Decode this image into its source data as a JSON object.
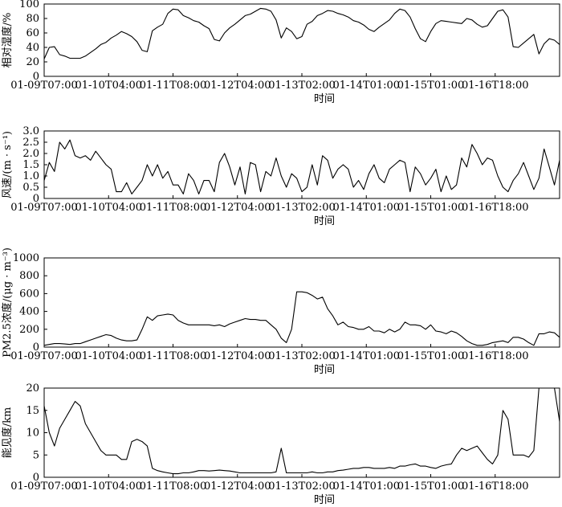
{
  "chart_data": [
    {
      "type": "line",
      "ylabel": "相对湿度/%",
      "xlabel": "时间",
      "ylim": [
        0,
        100
      ],
      "yticks": [
        0,
        20,
        40,
        60,
        80,
        100
      ],
      "xlim": [
        0,
        100
      ],
      "xticks": [
        0,
        12.5,
        25,
        37.5,
        50,
        62.5,
        75,
        87.5,
        100
      ],
      "xtick_labels": [
        "01-09T07:00",
        "01-10T04:00",
        "01-11T08:00",
        "01-12T04:00",
        "01-13T02:00",
        "01-14T01:00",
        "01-15T01:00",
        "01-16T18:00",
        ""
      ],
      "x": [
        0,
        1,
        2,
        3,
        4,
        5,
        6,
        7,
        8,
        9,
        10,
        11,
        12,
        13,
        14,
        15,
        16,
        17,
        18,
        19,
        20,
        21,
        22,
        23,
        24,
        25,
        26,
        27,
        28,
        29,
        30,
        31,
        32,
        33,
        34,
        35,
        36,
        37,
        38,
        39,
        40,
        41,
        42,
        43,
        44,
        45,
        46,
        47,
        48,
        49,
        50,
        51,
        52,
        53,
        54,
        55,
        56,
        57,
        58,
        59,
        60,
        61,
        62,
        63,
        64,
        65,
        66,
        67,
        68,
        69,
        70,
        71,
        72,
        73,
        74,
        75,
        76,
        77,
        78,
        79,
        80,
        81,
        82,
        83,
        84,
        85,
        86,
        87,
        88,
        89,
        90,
        91,
        92,
        93,
        94,
        95,
        96,
        97,
        98,
        99,
        100
      ],
      "y": [
        24,
        40,
        41,
        30,
        28,
        25,
        25,
        25,
        28,
        33,
        38,
        44,
        47,
        53,
        57,
        62,
        59,
        55,
        48,
        36,
        34,
        63,
        68,
        72,
        87,
        93,
        92,
        84,
        81,
        77,
        75,
        70,
        66,
        51,
        49,
        60,
        67,
        72,
        78,
        84,
        86,
        90,
        94,
        93,
        90,
        78,
        53,
        67,
        62,
        52,
        55,
        72,
        76,
        84,
        87,
        91,
        90,
        87,
        85,
        82,
        77,
        75,
        71,
        65,
        62,
        68,
        73,
        78,
        87,
        93,
        91,
        82,
        66,
        52,
        48,
        62,
        73,
        77,
        76,
        75,
        74,
        73,
        80,
        78,
        72,
        68,
        70,
        80,
        90,
        92,
        82,
        41,
        40,
        46,
        52,
        58,
        31,
        45,
        52,
        50,
        44
      ]
    },
    {
      "type": "line",
      "ylabel": "风速/(m · s⁻¹)",
      "xlabel": "时间",
      "ylim": [
        0,
        3
      ],
      "yticks": [
        0,
        0.5,
        1.0,
        1.5,
        2.0,
        2.5,
        3.0
      ],
      "ytick_labels": [
        "0",
        "0.5",
        "1.0",
        "1.5",
        "2.0",
        "2.5",
        "3.0"
      ],
      "xlim": [
        0,
        100
      ],
      "xticks": [
        0,
        12.5,
        25,
        37.5,
        50,
        62.5,
        75,
        87.5,
        100
      ],
      "xtick_labels": [
        "01-09T07:00",
        "01-10T04:00",
        "01-11T08:00",
        "01-12T04:00",
        "01-13T02:00",
        "01-14T01:00",
        "01-15T01:00",
        "01-16T18:00",
        ""
      ],
      "x": [
        0,
        1,
        2,
        3,
        4,
        5,
        6,
        7,
        8,
        9,
        10,
        11,
        12,
        13,
        14,
        15,
        16,
        17,
        18,
        19,
        20,
        21,
        22,
        23,
        24,
        25,
        26,
        27,
        28,
        29,
        30,
        31,
        32,
        33,
        34,
        35,
        36,
        37,
        38,
        39,
        40,
        41,
        42,
        43,
        44,
        45,
        46,
        47,
        48,
        49,
        50,
        51,
        52,
        53,
        54,
        55,
        56,
        57,
        58,
        59,
        60,
        61,
        62,
        63,
        64,
        65,
        66,
        67,
        68,
        69,
        70,
        71,
        72,
        73,
        74,
        75,
        76,
        77,
        78,
        79,
        80,
        81,
        82,
        83,
        84,
        85,
        86,
        87,
        88,
        89,
        90,
        91,
        92,
        93,
        94,
        95,
        96,
        97,
        98,
        99,
        100
      ],
      "y": [
        0.8,
        1.6,
        1.2,
        2.5,
        2.2,
        2.6,
        1.9,
        1.8,
        1.9,
        1.7,
        2.1,
        1.8,
        1.5,
        1.3,
        0.3,
        0.3,
        0.7,
        0.2,
        0.5,
        0.8,
        1.5,
        1.0,
        1.5,
        0.9,
        1.2,
        0.6,
        0.6,
        0.2,
        1.1,
        0.8,
        0.2,
        0.8,
        0.8,
        0.3,
        1.6,
        2.0,
        1.4,
        0.6,
        1.4,
        0.2,
        1.6,
        1.5,
        0.3,
        1.2,
        1.0,
        1.8,
        1.0,
        0.5,
        1.1,
        0.9,
        0.3,
        0.5,
        1.5,
        0.6,
        1.9,
        1.7,
        0.9,
        1.3,
        1.5,
        1.3,
        0.5,
        0.8,
        0.4,
        1.1,
        1.5,
        0.9,
        0.7,
        1.3,
        1.5,
        1.7,
        1.6,
        0.3,
        1.4,
        1.1,
        0.6,
        0.9,
        1.3,
        0.3,
        1.0,
        0.4,
        0.6,
        1.8,
        1.4,
        2.4,
        2.0,
        1.5,
        1.8,
        1.7,
        1.0,
        0.5,
        0.3,
        0.8,
        1.1,
        1.6,
        1.0,
        0.4,
        0.9,
        2.2,
        1.4,
        0.6,
        1.7
      ]
    },
    {
      "type": "line",
      "ylabel": "PM2.5浓度/(μg · m⁻³)",
      "xlabel": "时间",
      "ylim": [
        0,
        1000
      ],
      "yticks": [
        0,
        200,
        400,
        600,
        800,
        1000
      ],
      "xlim": [
        0,
        100
      ],
      "xticks": [
        0,
        12.5,
        25,
        37.5,
        50,
        62.5,
        75,
        87.5,
        100
      ],
      "xtick_labels": [
        "01-09T07:00",
        "01-10T04:00",
        "01-11T08:00",
        "01-12T04:00",
        "01-13T02:00",
        "01-14T01:00",
        "01-15T01:00",
        "01-16T18:00",
        ""
      ],
      "x": [
        0,
        1,
        2,
        3,
        4,
        5,
        6,
        7,
        8,
        9,
        10,
        11,
        12,
        13,
        14,
        15,
        16,
        17,
        18,
        19,
        20,
        21,
        22,
        23,
        24,
        25,
        26,
        27,
        28,
        29,
        30,
        31,
        32,
        33,
        34,
        35,
        36,
        37,
        38,
        39,
        40,
        41,
        42,
        43,
        44,
        45,
        46,
        47,
        48,
        49,
        50,
        51,
        52,
        53,
        54,
        55,
        56,
        57,
        58,
        59,
        60,
        61,
        62,
        63,
        64,
        65,
        66,
        67,
        68,
        69,
        70,
        71,
        72,
        73,
        74,
        75,
        76,
        77,
        78,
        79,
        80,
        81,
        82,
        83,
        84,
        85,
        86,
        87,
        88,
        89,
        90,
        91,
        92,
        93,
        94,
        95,
        96,
        97,
        98,
        99,
        100
      ],
      "y": [
        20,
        30,
        40,
        40,
        35,
        30,
        40,
        40,
        60,
        80,
        100,
        120,
        140,
        130,
        100,
        80,
        70,
        70,
        80,
        200,
        340,
        300,
        350,
        360,
        370,
        360,
        300,
        270,
        250,
        250,
        250,
        250,
        250,
        240,
        250,
        230,
        260,
        280,
        300,
        320,
        310,
        310,
        300,
        300,
        250,
        200,
        100,
        50,
        200,
        620,
        620,
        610,
        580,
        540,
        560,
        430,
        350,
        250,
        280,
        230,
        220,
        200,
        200,
        230,
        180,
        180,
        160,
        200,
        170,
        200,
        280,
        250,
        250,
        240,
        200,
        250,
        180,
        170,
        150,
        180,
        160,
        120,
        70,
        40,
        20,
        20,
        30,
        50,
        60,
        70,
        50,
        110,
        110,
        90,
        50,
        20,
        150,
        150,
        170,
        160,
        110
      ]
    },
    {
      "type": "line",
      "ylabel": "能见度/km",
      "xlabel": "时间",
      "ylim": [
        0,
        20
      ],
      "yticks": [
        0,
        5,
        10,
        15,
        20
      ],
      "xlim": [
        0,
        100
      ],
      "xticks": [
        0,
        12.5,
        25,
        37.5,
        50,
        62.5,
        75,
        87.5,
        100
      ],
      "xtick_labels": [
        "01-09T07:00",
        "01-10T04:00",
        "01-11T08:00",
        "01-12T04:00",
        "01-13T02:00",
        "01-14T01:00",
        "01-15T01:00",
        "01-16T18:00",
        ""
      ],
      "x": [
        0,
        1,
        2,
        3,
        4,
        5,
        6,
        7,
        8,
        9,
        10,
        11,
        12,
        13,
        14,
        15,
        16,
        17,
        18,
        19,
        20,
        21,
        22,
        23,
        24,
        25,
        26,
        27,
        28,
        29,
        30,
        31,
        32,
        33,
        34,
        35,
        36,
        37,
        38,
        39,
        40,
        41,
        42,
        43,
        44,
        45,
        46,
        47,
        48,
        49,
        50,
        51,
        52,
        53,
        54,
        55,
        56,
        57,
        58,
        59,
        60,
        61,
        62,
        63,
        64,
        65,
        66,
        67,
        68,
        69,
        70,
        71,
        72,
        73,
        74,
        75,
        76,
        77,
        78,
        79,
        80,
        81,
        82,
        83,
        84,
        85,
        86,
        87,
        88,
        89,
        90,
        91,
        92,
        93,
        94,
        95,
        96,
        97,
        98,
        99,
        100
      ],
      "y": [
        16,
        10,
        7,
        11,
        13,
        15,
        17,
        16,
        12,
        10,
        8,
        6,
        5,
        5,
        5,
        4,
        4,
        8,
        8.5,
        8,
        7,
        2,
        1.5,
        1.2,
        1,
        0.8,
        0.8,
        1,
        1,
        1.2,
        1.5,
        1.5,
        1.4,
        1.5,
        1.6,
        1.5,
        1.4,
        1.2,
        1,
        1,
        1,
        1,
        1,
        1,
        1,
        1.2,
        6.5,
        1,
        1,
        1,
        1,
        1,
        1.2,
        1,
        1,
        1.2,
        1.2,
        1.5,
        1.6,
        1.8,
        2,
        2,
        2.2,
        2.2,
        2,
        2,
        2,
        2.2,
        2,
        2.5,
        2.5,
        2.8,
        3,
        2.5,
        2.5,
        2.2,
        2,
        2.5,
        2.8,
        3,
        5,
        6.5,
        6,
        6.5,
        7,
        5.5,
        4,
        3,
        5,
        15,
        13,
        5,
        5,
        5,
        4.5,
        6,
        20,
        20,
        20,
        20,
        12.5
      ]
    }
  ]
}
